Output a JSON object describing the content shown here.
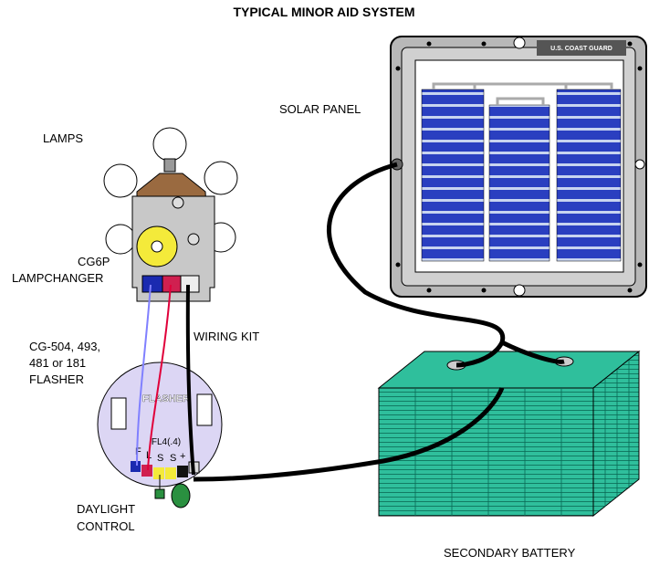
{
  "title": "TYPICAL MINOR AID SYSTEM",
  "labels": {
    "solar_panel": "SOLAR PANEL",
    "lamps": "LAMPS",
    "lampchanger": [
      "CG6P",
      "LAMPCHANGER"
    ],
    "wiring_kit": "WIRING KIT",
    "flasher": [
      "CG-504, 493,",
      "481 or 181",
      "FLASHER"
    ],
    "daylight_control": [
      "DAYLIGHT",
      "CONTROL"
    ],
    "secondary_battery": "SECONDARY BATTERY"
  },
  "device_text": {
    "panel_brand": "U.S. COAST GUARD",
    "flasher_name": "FLASHER",
    "flasher_model": "FL4(.4)",
    "terminals": [
      "F",
      "L",
      "S",
      "S",
      "+"
    ]
  }
}
